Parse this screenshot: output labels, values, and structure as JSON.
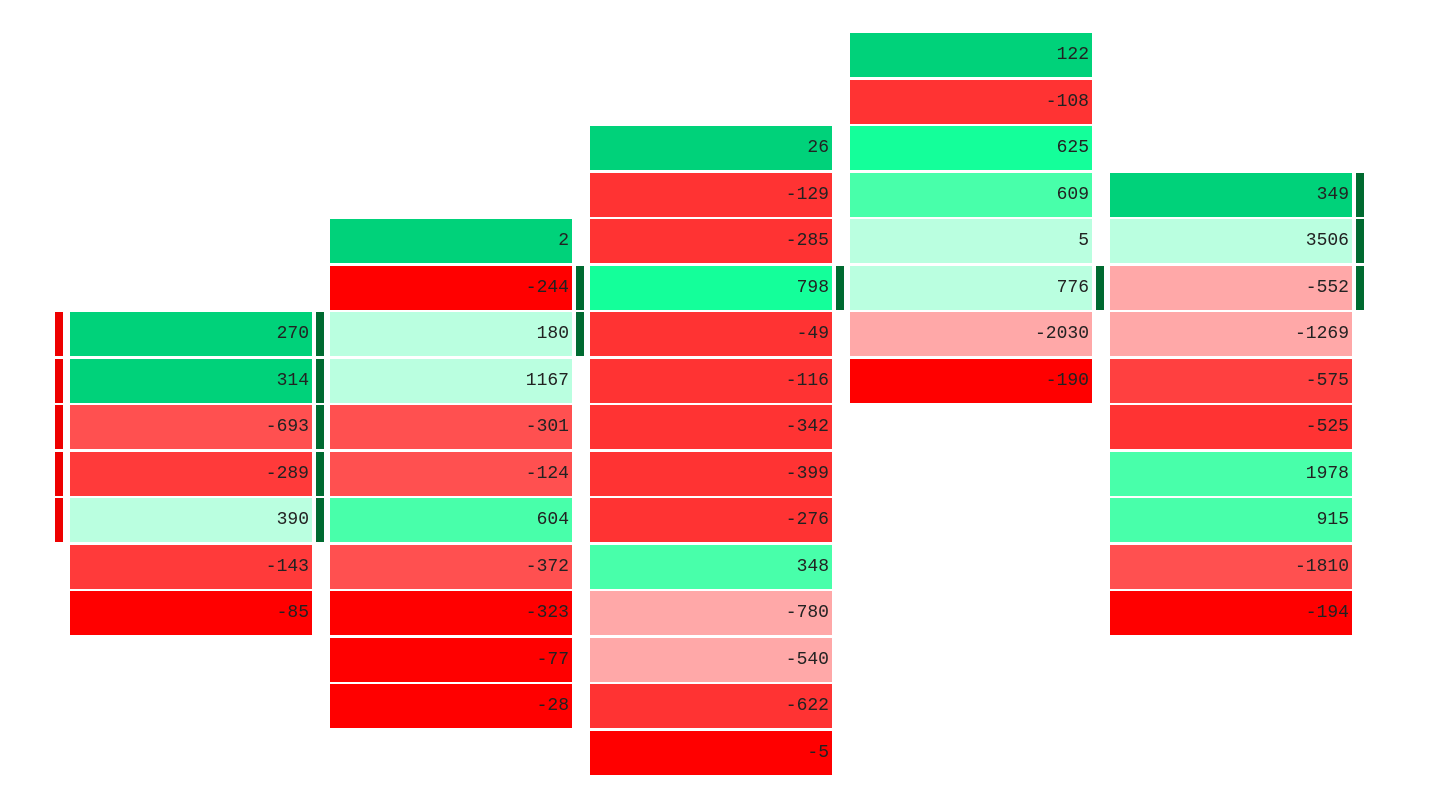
{
  "columns": [
    {
      "cells": [
        {
          "value": 270,
          "color": "#00d27a"
        },
        {
          "value": 314,
          "color": "#00d27a"
        },
        {
          "value": -693,
          "color": "#ff5050"
        },
        {
          "value": -289,
          "color": "#ff3a3a"
        },
        {
          "value": 390,
          "color": "#baffe0"
        },
        {
          "value": -143,
          "color": "#ff3a3a"
        },
        {
          "value": -85,
          "color": "#ff0000"
        }
      ]
    },
    {
      "cells": [
        {
          "value": 2,
          "color": "#00d27a"
        },
        {
          "value": -244,
          "color": "#ff0000"
        },
        {
          "value": 180,
          "color": "#baffe0"
        },
        {
          "value": 1167,
          "color": "#baffe0"
        },
        {
          "value": -301,
          "color": "#ff5050"
        },
        {
          "value": -124,
          "color": "#ff5050"
        },
        {
          "value": 604,
          "color": "#48ffaa"
        },
        {
          "value": -372,
          "color": "#ff5050"
        },
        {
          "value": -323,
          "color": "#ff0000"
        },
        {
          "value": -77,
          "color": "#ff0000"
        },
        {
          "value": -28,
          "color": "#ff0000"
        }
      ]
    },
    {
      "cells": [
        {
          "value": 26,
          "color": "#00d27a"
        },
        {
          "value": -129,
          "color": "#ff3333"
        },
        {
          "value": -285,
          "color": "#ff3333"
        },
        {
          "value": 798,
          "color": "#14ff9a"
        },
        {
          "value": -49,
          "color": "#ff3333"
        },
        {
          "value": -116,
          "color": "#ff3333"
        },
        {
          "value": -342,
          "color": "#ff3333"
        },
        {
          "value": -399,
          "color": "#ff3333"
        },
        {
          "value": -276,
          "color": "#ff3333"
        },
        {
          "value": 348,
          "color": "#48ffaa"
        },
        {
          "value": -780,
          "color": "#ffa8a8"
        },
        {
          "value": -540,
          "color": "#ffa8a8"
        },
        {
          "value": -622,
          "color": "#ff3333"
        },
        {
          "value": -5,
          "color": "#ff0000"
        }
      ]
    },
    {
      "cells": [
        {
          "value": 122,
          "color": "#00d27a"
        },
        {
          "value": -108,
          "color": "#ff3333"
        },
        {
          "value": 625,
          "color": "#14ff9a"
        },
        {
          "value": 609,
          "color": "#48ffaa"
        },
        {
          "value": 5,
          "color": "#baffe0"
        },
        {
          "value": 776,
          "color": "#baffe0"
        },
        {
          "value": -2030,
          "color": "#ffa8a8"
        },
        {
          "value": -190,
          "color": "#ff0000"
        }
      ]
    },
    {
      "cells": [
        {
          "value": 349,
          "color": "#00d27a"
        },
        {
          "value": 3506,
          "color": "#baffe0"
        },
        {
          "value": -552,
          "color": "#ffa8a8"
        },
        {
          "value": -1269,
          "color": "#ffa8a8"
        },
        {
          "value": -575,
          "color": "#ff4040"
        },
        {
          "value": -525,
          "color": "#ff3333"
        },
        {
          "value": 1978,
          "color": "#48ffaa"
        },
        {
          "value": 915,
          "color": "#48ffaa"
        },
        {
          "value": -1810,
          "color": "#ff5050"
        },
        {
          "value": -194,
          "color": "#ff0000"
        }
      ]
    }
  ]
}
